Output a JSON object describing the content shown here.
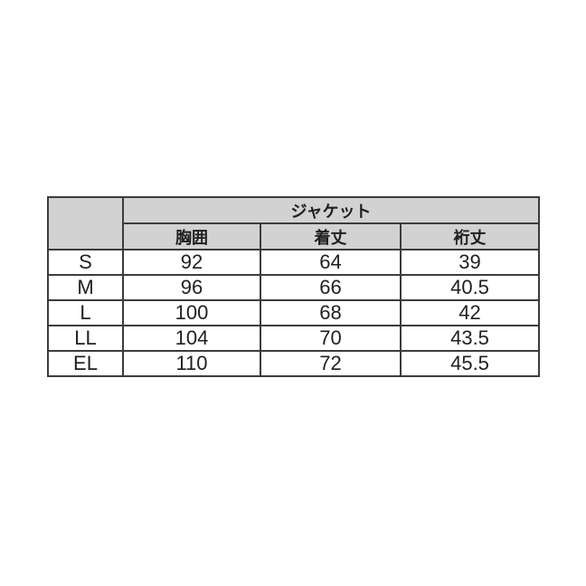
{
  "chart_data": {
    "type": "table",
    "group_header": "ジャケット",
    "columns": [
      "胸囲",
      "着丈",
      "裄丈"
    ],
    "rows": [
      {
        "size": "S",
        "chest": "92",
        "length": "64",
        "sleeve": "39"
      },
      {
        "size": "M",
        "chest": "96",
        "length": "66",
        "sleeve": "40.5"
      },
      {
        "size": "L",
        "chest": "100",
        "length": "68",
        "sleeve": "42"
      },
      {
        "size": "LL",
        "chest": "104",
        "length": "70",
        "sleeve": "43.5"
      },
      {
        "size": "EL",
        "chest": "110",
        "length": "72",
        "sleeve": "45.5"
      }
    ],
    "layout": {
      "header_background": "#d2d2d2",
      "border_color": "#3c3c3c",
      "page_background": "#ffffff",
      "text_color": "#1f1f1f"
    }
  }
}
